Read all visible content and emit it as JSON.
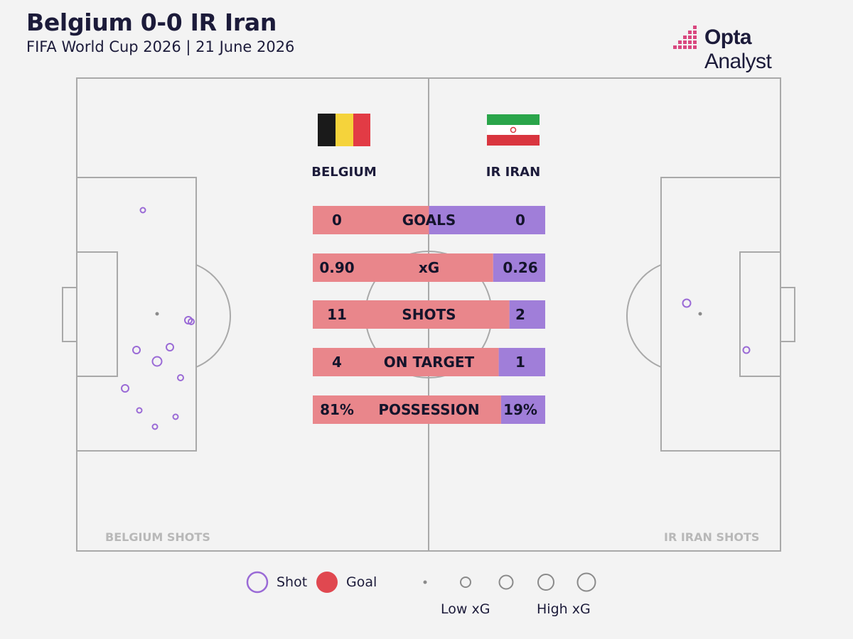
{
  "title": "Belgium 0-0 IR Iran",
  "subtitle": "FIFA World Cup 2026 | 21 June 2026",
  "brand": {
    "bold": "Opta",
    "rest": " Analyst",
    "icon": "opta-bars-logo"
  },
  "teams": {
    "home": {
      "name": "BELGIUM",
      "flag": "belgium-flag"
    },
    "away": {
      "name": "IR IRAN",
      "flag": "iran-flag"
    }
  },
  "colors": {
    "home": "#e9868b",
    "away": "#a07ed9",
    "shot_outline": "#9a6ad6",
    "goal": "#e04850",
    "pitch_lines": "#a9a9a9"
  },
  "chart_data": {
    "type": "table",
    "stats": [
      {
        "label": "GOALS",
        "home": "0",
        "away": "0",
        "home_share": 0.5
      },
      {
        "label": "xG",
        "home": "0.90",
        "away": "0.26",
        "home_share": 0.776
      },
      {
        "label": "SHOTS",
        "home": "11",
        "away": "2",
        "home_share": 0.846
      },
      {
        "label": "ON TARGET",
        "home": "4",
        "away": "1",
        "home_share": 0.8
      },
      {
        "label": "POSSESSION",
        "home": "81%",
        "away": "19%",
        "home_share": 0.81
      }
    ]
  },
  "shot_maps": {
    "home_caption": "BELGIUM SHOTS",
    "away_caption": "IR IRAN SHOTS"
  },
  "legend": {
    "shot_label": "Shot",
    "goal_label": "Goal",
    "low_xg_label": "Low xG",
    "high_xg_label": "High xG"
  }
}
